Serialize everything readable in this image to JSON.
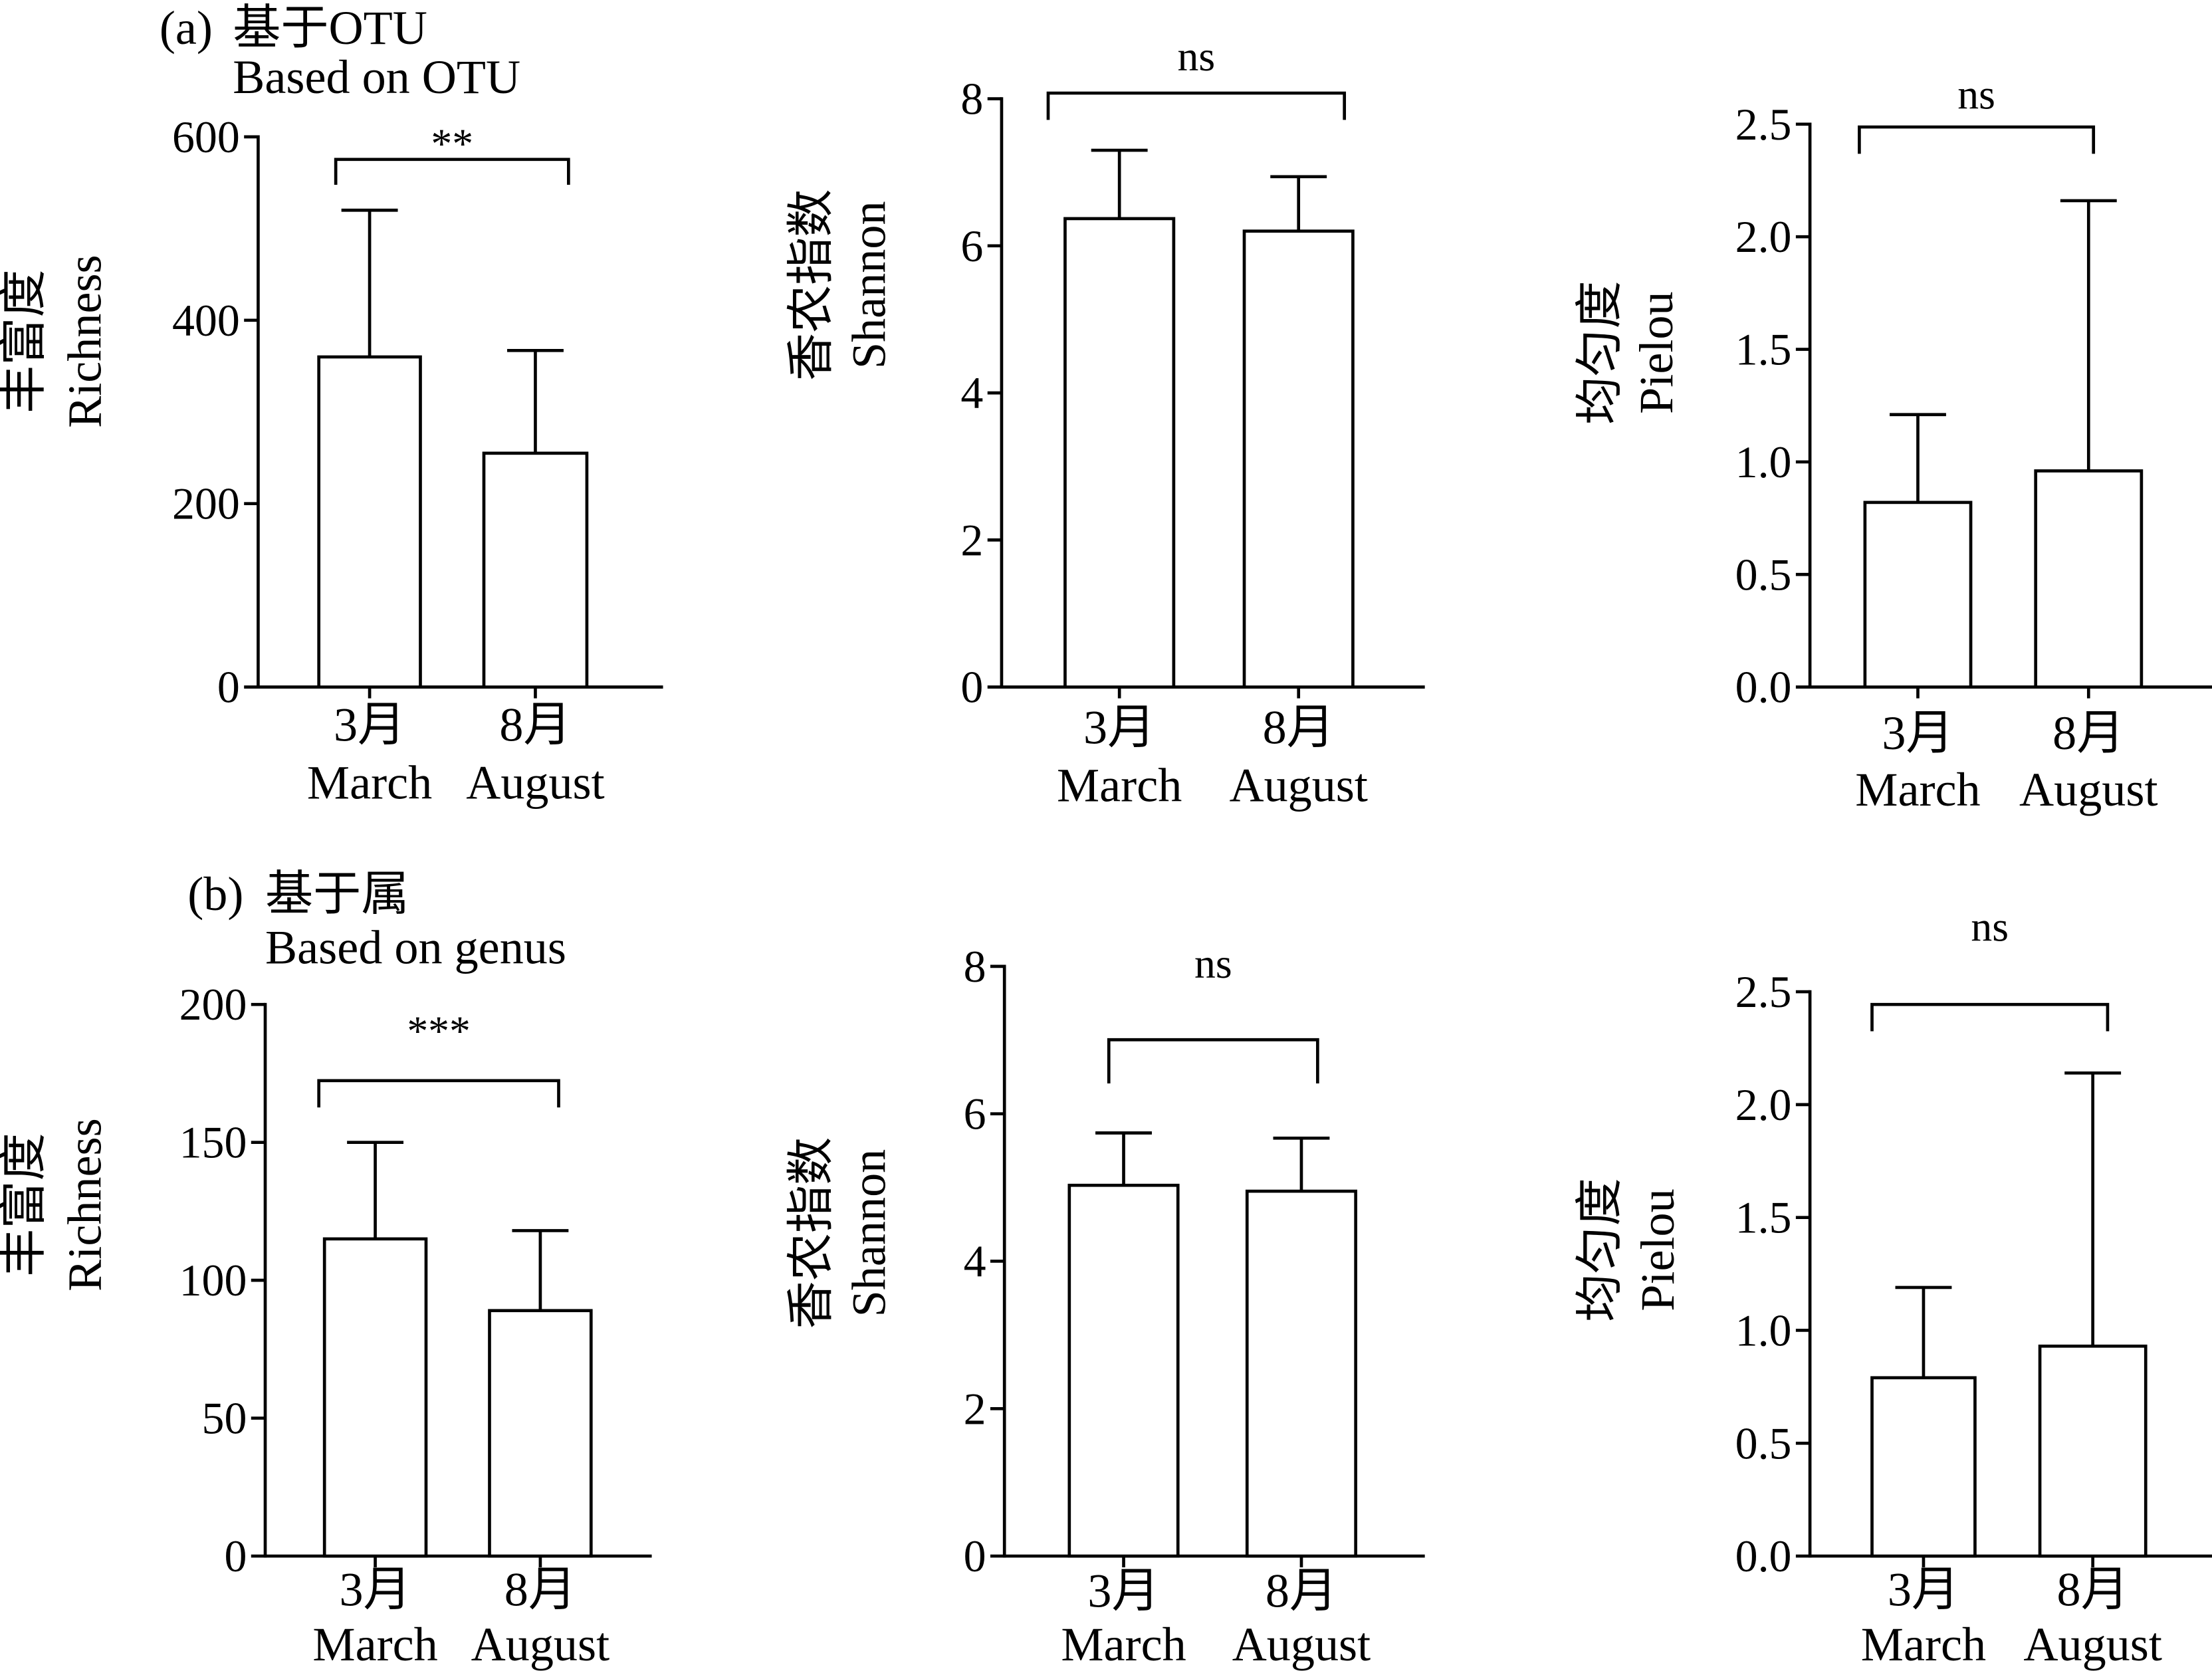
{
  "panels": [
    {
      "label": "(a)",
      "title": "基于OTU",
      "subtitle": "Based on OTU"
    },
    {
      "label": "(b)",
      "title": "基于属",
      "subtitle": "Based on genus"
    }
  ],
  "style": {
    "background": "#ffffff",
    "bar_fill": "#ffffff",
    "line_color": "#000000"
  },
  "chart_data": [
    {
      "type": "bar",
      "categories": [
        [
          "3月",
          "March"
        ],
        [
          "8月",
          "August"
        ]
      ],
      "values": [
        360,
        255
      ],
      "errors": [
        160,
        112
      ],
      "ylabel": [
        "丰富度",
        "Richness"
      ],
      "ylim": [
        0,
        600
      ],
      "yticks": [
        0,
        200,
        400,
        600
      ],
      "ytick_labels": [
        "0",
        "200",
        "400",
        "600"
      ],
      "grid": false,
      "significance": {
        "label": "**",
        "between": [
          0,
          1
        ]
      }
    },
    {
      "type": "bar",
      "categories": [
        [
          "3月",
          "March"
        ],
        [
          "8月",
          "August"
        ]
      ],
      "values": [
        6.37,
        6.2
      ],
      "errors": [
        0.93,
        0.74
      ],
      "ylabel": [
        "香农指数",
        "Shannon"
      ],
      "ylim": [
        0,
        8
      ],
      "yticks": [
        0,
        2,
        4,
        6,
        8
      ],
      "ytick_labels": [
        "0",
        "2",
        "4",
        "6",
        "8"
      ],
      "grid": false,
      "significance": {
        "label": "ns",
        "between": [
          0,
          1
        ]
      }
    },
    {
      "type": "bar",
      "categories": [
        [
          "3月",
          "March"
        ],
        [
          "8月",
          "August"
        ]
      ],
      "values": [
        0.82,
        0.96
      ],
      "errors": [
        0.39,
        1.2
      ],
      "ylabel": [
        "均匀度",
        "Pielou"
      ],
      "ylim": [
        0,
        2.5
      ],
      "yticks": [
        0,
        0.5,
        1,
        1.5,
        2,
        2.5
      ],
      "ytick_labels": [
        "0.0",
        "0.5",
        "1.0",
        "1.5",
        "2.0",
        "2.5"
      ],
      "grid": false,
      "significance": {
        "label": "ns",
        "between": [
          0,
          1
        ]
      }
    },
    {
      "type": "bar",
      "categories": [
        [
          "3月",
          "March"
        ],
        [
          "8月",
          "August"
        ]
      ],
      "values": [
        115,
        89
      ],
      "errors": [
        35,
        29
      ],
      "ylabel": [
        "丰富度",
        "Richness"
      ],
      "ylim": [
        0,
        200
      ],
      "yticks": [
        0,
        50,
        100,
        150,
        200
      ],
      "ytick_labels": [
        "0",
        "50",
        "100",
        "150",
        "200"
      ],
      "grid": false,
      "significance": {
        "label": "***",
        "between": [
          0,
          1
        ]
      }
    },
    {
      "type": "bar",
      "categories": [
        [
          "3月",
          "March"
        ],
        [
          "8月",
          "August"
        ]
      ],
      "values": [
        5.03,
        4.95
      ],
      "errors": [
        0.71,
        0.72
      ],
      "ylabel": [
        "香农指数",
        "Shannon"
      ],
      "ylim": [
        0,
        8
      ],
      "yticks": [
        0,
        2,
        4,
        6,
        8
      ],
      "ytick_labels": [
        "0",
        "2",
        "4",
        "6",
        "8"
      ],
      "grid": false,
      "significance": {
        "label": "ns",
        "between": [
          0,
          1
        ]
      }
    },
    {
      "type": "bar",
      "categories": [
        [
          "3月",
          "March"
        ],
        [
          "8月",
          "August"
        ]
      ],
      "values": [
        0.79,
        0.93
      ],
      "errors": [
        0.4,
        1.21
      ],
      "ylabel": [
        "均匀度",
        "Pielou"
      ],
      "ylim": [
        0,
        2.5
      ],
      "yticks": [
        0,
        0.5,
        1,
        1.5,
        2,
        2.5
      ],
      "ytick_labels": [
        "0.0",
        "0.5",
        "1.0",
        "1.5",
        "2.0",
        "2.5"
      ],
      "grid": false,
      "significance": {
        "label": "ns",
        "between": [
          0,
          1
        ]
      }
    }
  ]
}
